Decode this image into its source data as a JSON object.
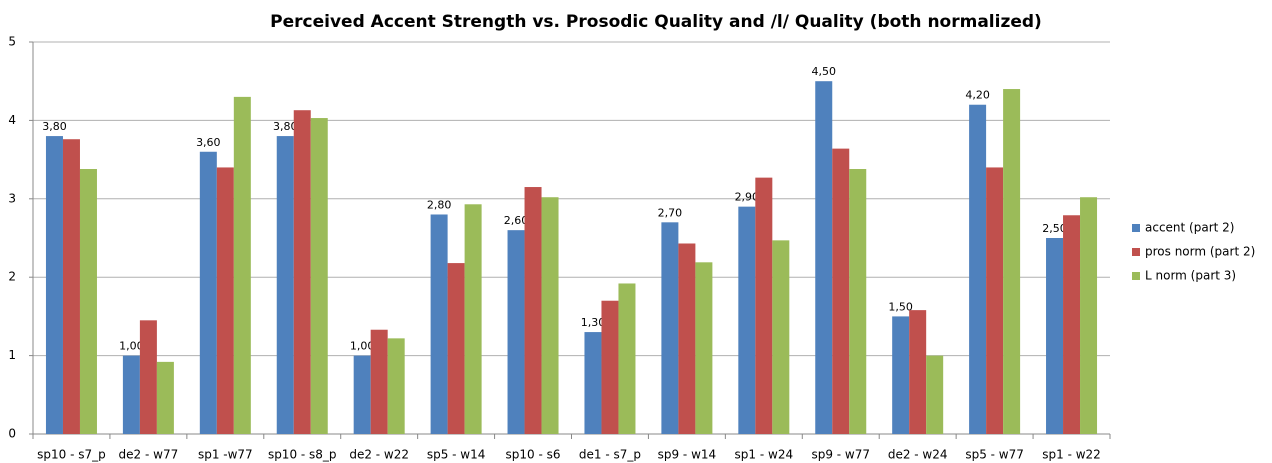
{
  "chart_data": {
    "type": "bar",
    "title": "Perceived Accent Strength vs. Prosodic Quality and /l/ Quality (both normalized)",
    "categories": [
      "sp10 - s7_p",
      "de2 - w77",
      "sp1 -w77",
      "sp10 - s8_p",
      "de2 - w22",
      "sp5 - w14",
      "sp10 - s6",
      "de1 - s7_p",
      "sp9 - w14",
      "sp1 - w24",
      "sp9 - w77",
      "de2 - w24",
      "sp5 - w77",
      "sp1 - w22"
    ],
    "series": [
      {
        "name": "accent (part 2)",
        "color": "#4f81bd",
        "values": [
          3.8,
          1.0,
          3.6,
          3.8,
          1.0,
          2.8,
          2.6,
          1.3,
          2.7,
          2.9,
          4.5,
          1.5,
          4.2,
          2.5
        ],
        "value_labels": [
          "3,80",
          "1,00",
          "3,60",
          "3,80",
          "1,00",
          "2,80",
          "2,60",
          "1,30",
          "2,70",
          "2,90",
          "4,50",
          "1,50",
          "4,20",
          "2,50"
        ]
      },
      {
        "name": "pros norm (part 2)",
        "color": "#c0504d",
        "values": [
          3.76,
          1.45,
          3.4,
          4.13,
          1.33,
          2.18,
          3.15,
          1.7,
          2.43,
          3.27,
          3.64,
          1.58,
          3.4,
          2.79
        ]
      },
      {
        "name": "L norm (part 3)",
        "color": "#9bbb59",
        "values": [
          3.38,
          0.92,
          4.3,
          4.03,
          1.22,
          2.93,
          3.02,
          1.92,
          2.19,
          2.47,
          3.38,
          1.0,
          4.4,
          3.02
        ]
      }
    ],
    "ylim": [
      0,
      5
    ],
    "yticks": [
      0,
      1,
      2,
      3,
      4,
      5
    ],
    "grid": true,
    "legend": "right"
  }
}
